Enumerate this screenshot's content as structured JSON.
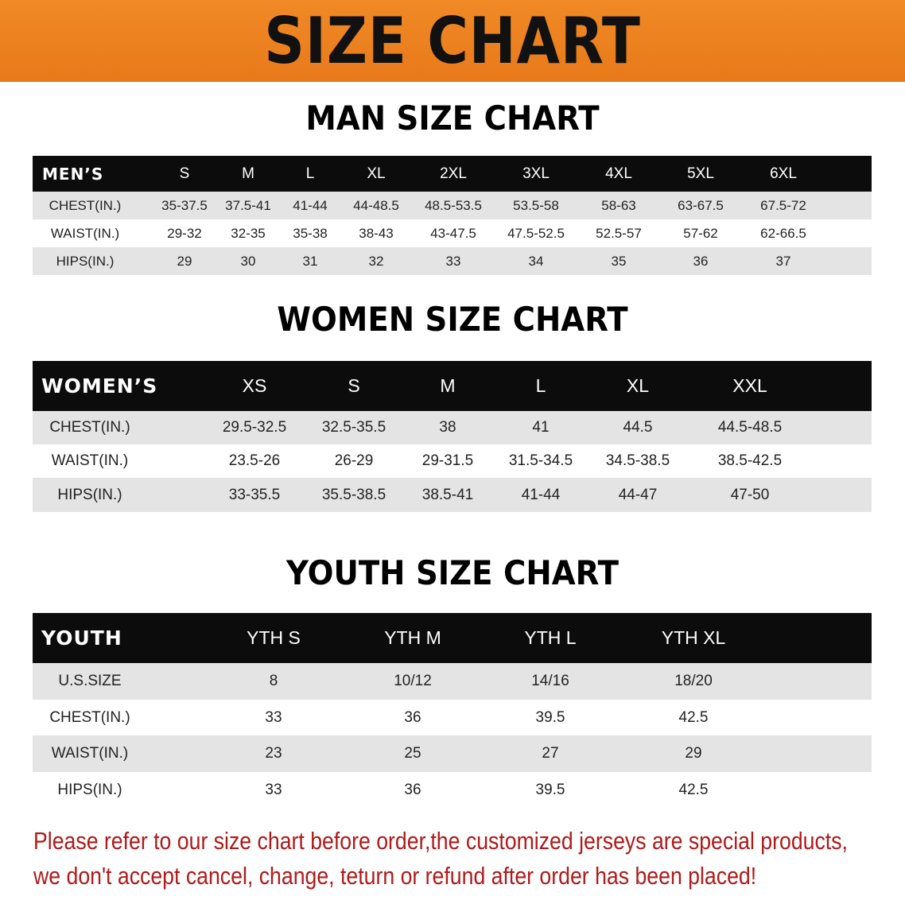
{
  "banner": {
    "title": "SIZE CHART",
    "color": "#ee7f1e"
  },
  "men": {
    "title": "MAN SIZE CHART",
    "header": "MEN’S",
    "sizes": [
      "S",
      "M",
      "L",
      "XL",
      "2XL",
      "3XL",
      "4XL",
      "5XL",
      "6XL"
    ],
    "rows": [
      {
        "label": "CHEST(IN.)",
        "values": [
          "35-37.5",
          "37.5-41",
          "41-44",
          "44-48.5",
          "48.5-53.5",
          "53.5-58",
          "58-63",
          "63-67.5",
          "67.5-72"
        ]
      },
      {
        "label": "WAIST(IN.)",
        "values": [
          "29-32",
          "32-35",
          "35-38",
          "38-43",
          "43-47.5",
          "47.5-52.5",
          "52.5-57",
          "57-62",
          "62-66.5"
        ]
      },
      {
        "label": "HIPS(IN.)",
        "values": [
          "29",
          "30",
          "31",
          "32",
          "33",
          "34",
          "35",
          "36",
          "37"
        ]
      }
    ]
  },
  "women": {
    "title": "WOMEN SIZE CHART",
    "header": "WOMEN’S",
    "sizes": [
      "XS",
      "S",
      "M",
      "L",
      "XL",
      "XXL"
    ],
    "rows": [
      {
        "label": "CHEST(IN.)",
        "values": [
          "29.5-32.5",
          "32.5-35.5",
          "38",
          "41",
          "44.5",
          "44.5-48.5"
        ]
      },
      {
        "label": "WAIST(IN.)",
        "values": [
          "23.5-26",
          "26-29",
          "29-31.5",
          "31.5-34.5",
          "34.5-38.5",
          "38.5-42.5"
        ]
      },
      {
        "label": "HIPS(IN.)",
        "values": [
          "33-35.5",
          "35.5-38.5",
          "38.5-41",
          "41-44",
          "44-47",
          "47-50"
        ]
      }
    ]
  },
  "youth": {
    "title": "YOUTH SIZE CHART",
    "header": "YOUTH",
    "sizes": [
      "YTH S",
      "YTH M",
      "YTH L",
      "YTH XL"
    ],
    "rows": [
      {
        "label": "U.S.SIZE",
        "values": [
          "8",
          "10/12",
          "14/16",
          "18/20"
        ]
      },
      {
        "label": "CHEST(IN.)",
        "values": [
          "33",
          "36",
          "39.5",
          "42.5"
        ]
      },
      {
        "label": "WAIST(IN.)",
        "values": [
          "23",
          "25",
          "27",
          "29"
        ]
      },
      {
        "label": "HIPS(IN.)",
        "values": [
          "33",
          "36",
          "39.5",
          "42.5"
        ]
      }
    ]
  },
  "notice": {
    "line1": "Please refer to our size chart before order,the customized jerseys are special products,",
    "line2": "we don't accept cancel, change, teturn or refund after order has been placed!",
    "color": "#b01a1a"
  }
}
